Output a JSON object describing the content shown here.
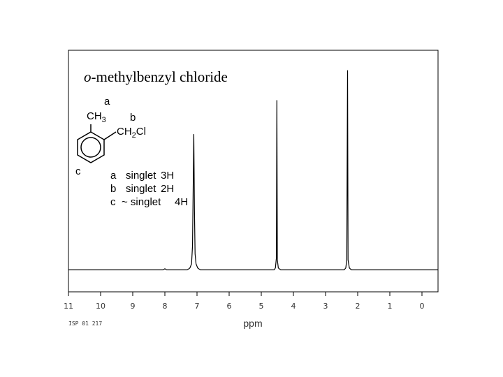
{
  "chart_data": {
    "type": "line",
    "title": {
      "italic": "o",
      "text": "-methylbenzyl chloride"
    },
    "x_label": "ppm",
    "footnote": "ISP 01 217",
    "structure": {
      "a": "a",
      "ch3": "CH",
      "ch3_sub": "3",
      "b": "b",
      "ch2cl": "CH",
      "ch2cl_sub": "2",
      "ch2cl_end": "Cl",
      "c": "c"
    },
    "assignments": [
      [
        "a",
        "singlet",
        "3H"
      ],
      [
        "b",
        "singlet",
        "2H"
      ],
      [
        "c",
        "~ singlet",
        "4H"
      ]
    ],
    "x": [
      11,
      8.05,
      8.0,
      7.95,
      7.3,
      7.22,
      7.17,
      7.14,
      7.12,
      7.1,
      7.08,
      7.06,
      7.03,
      6.98,
      6.9,
      4.6,
      4.56,
      4.53,
      4.515,
      4.5,
      4.47,
      4.4,
      2.42,
      2.37,
      2.34,
      2.315,
      2.3,
      2.26,
      2.2,
      -0.5
    ],
    "values": [
      0,
      0,
      0.6,
      0,
      0,
      1,
      3,
      12,
      40,
      68,
      30,
      8,
      3,
      1,
      0,
      0,
      1,
      6,
      85,
      5,
      1,
      0,
      0,
      1,
      5,
      100,
      5,
      1,
      0,
      0
    ],
    "color": "#000000",
    "xlim": [
      11,
      -0.5
    ],
    "ylim": [
      -11,
      110
    ],
    "xticks": [
      11,
      10,
      9,
      8,
      7,
      6,
      5,
      4,
      3,
      2,
      1,
      0
    ]
  }
}
